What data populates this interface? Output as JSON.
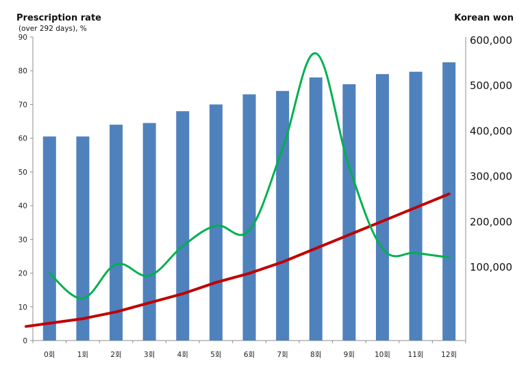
{
  "chart_data": {
    "type": "bar",
    "categories": [
      "0회",
      "1회",
      "2회",
      "3회",
      "4회",
      "5회",
      "6회",
      "7회",
      "8회",
      "9회",
      "10회",
      "11회",
      "12회"
    ],
    "left_axis": {
      "title": "Prescription rate",
      "subtitle": "(over 292 days), %",
      "ylim": [
        0,
        90
      ],
      "ticks": [
        "0",
        "10",
        "20",
        "30",
        "40",
        "50",
        "60",
        "70",
        "80",
        "90"
      ]
    },
    "right_axis": {
      "title": "Korean won",
      "ticks": [
        "100,000",
        "200,000",
        "300,000",
        "400,000",
        "500,000",
        "600,000"
      ]
    },
    "series": [
      {
        "type": "bar",
        "axis": "left",
        "color": "#4f81bd",
        "values": [
          60.5,
          60.5,
          64,
          64.5,
          68,
          70,
          73,
          74,
          78,
          76,
          79,
          79.7,
          82.5
        ]
      },
      {
        "type": "line",
        "axis": "right",
        "color": "#00b050",
        "values": [
          85000,
          30000,
          105000,
          80000,
          145000,
          190000,
          180000,
          360000,
          570000,
          320000,
          140000,
          130000,
          120000
        ]
      },
      {
        "type": "line",
        "axis": "right",
        "color": "#c00000",
        "values": [
          -25000,
          -15000,
          0,
          20000,
          40000,
          65000,
          85000,
          110000,
          140000,
          170000,
          200000,
          230000,
          260000
        ]
      }
    ],
    "grid": false,
    "legend": "none"
  }
}
